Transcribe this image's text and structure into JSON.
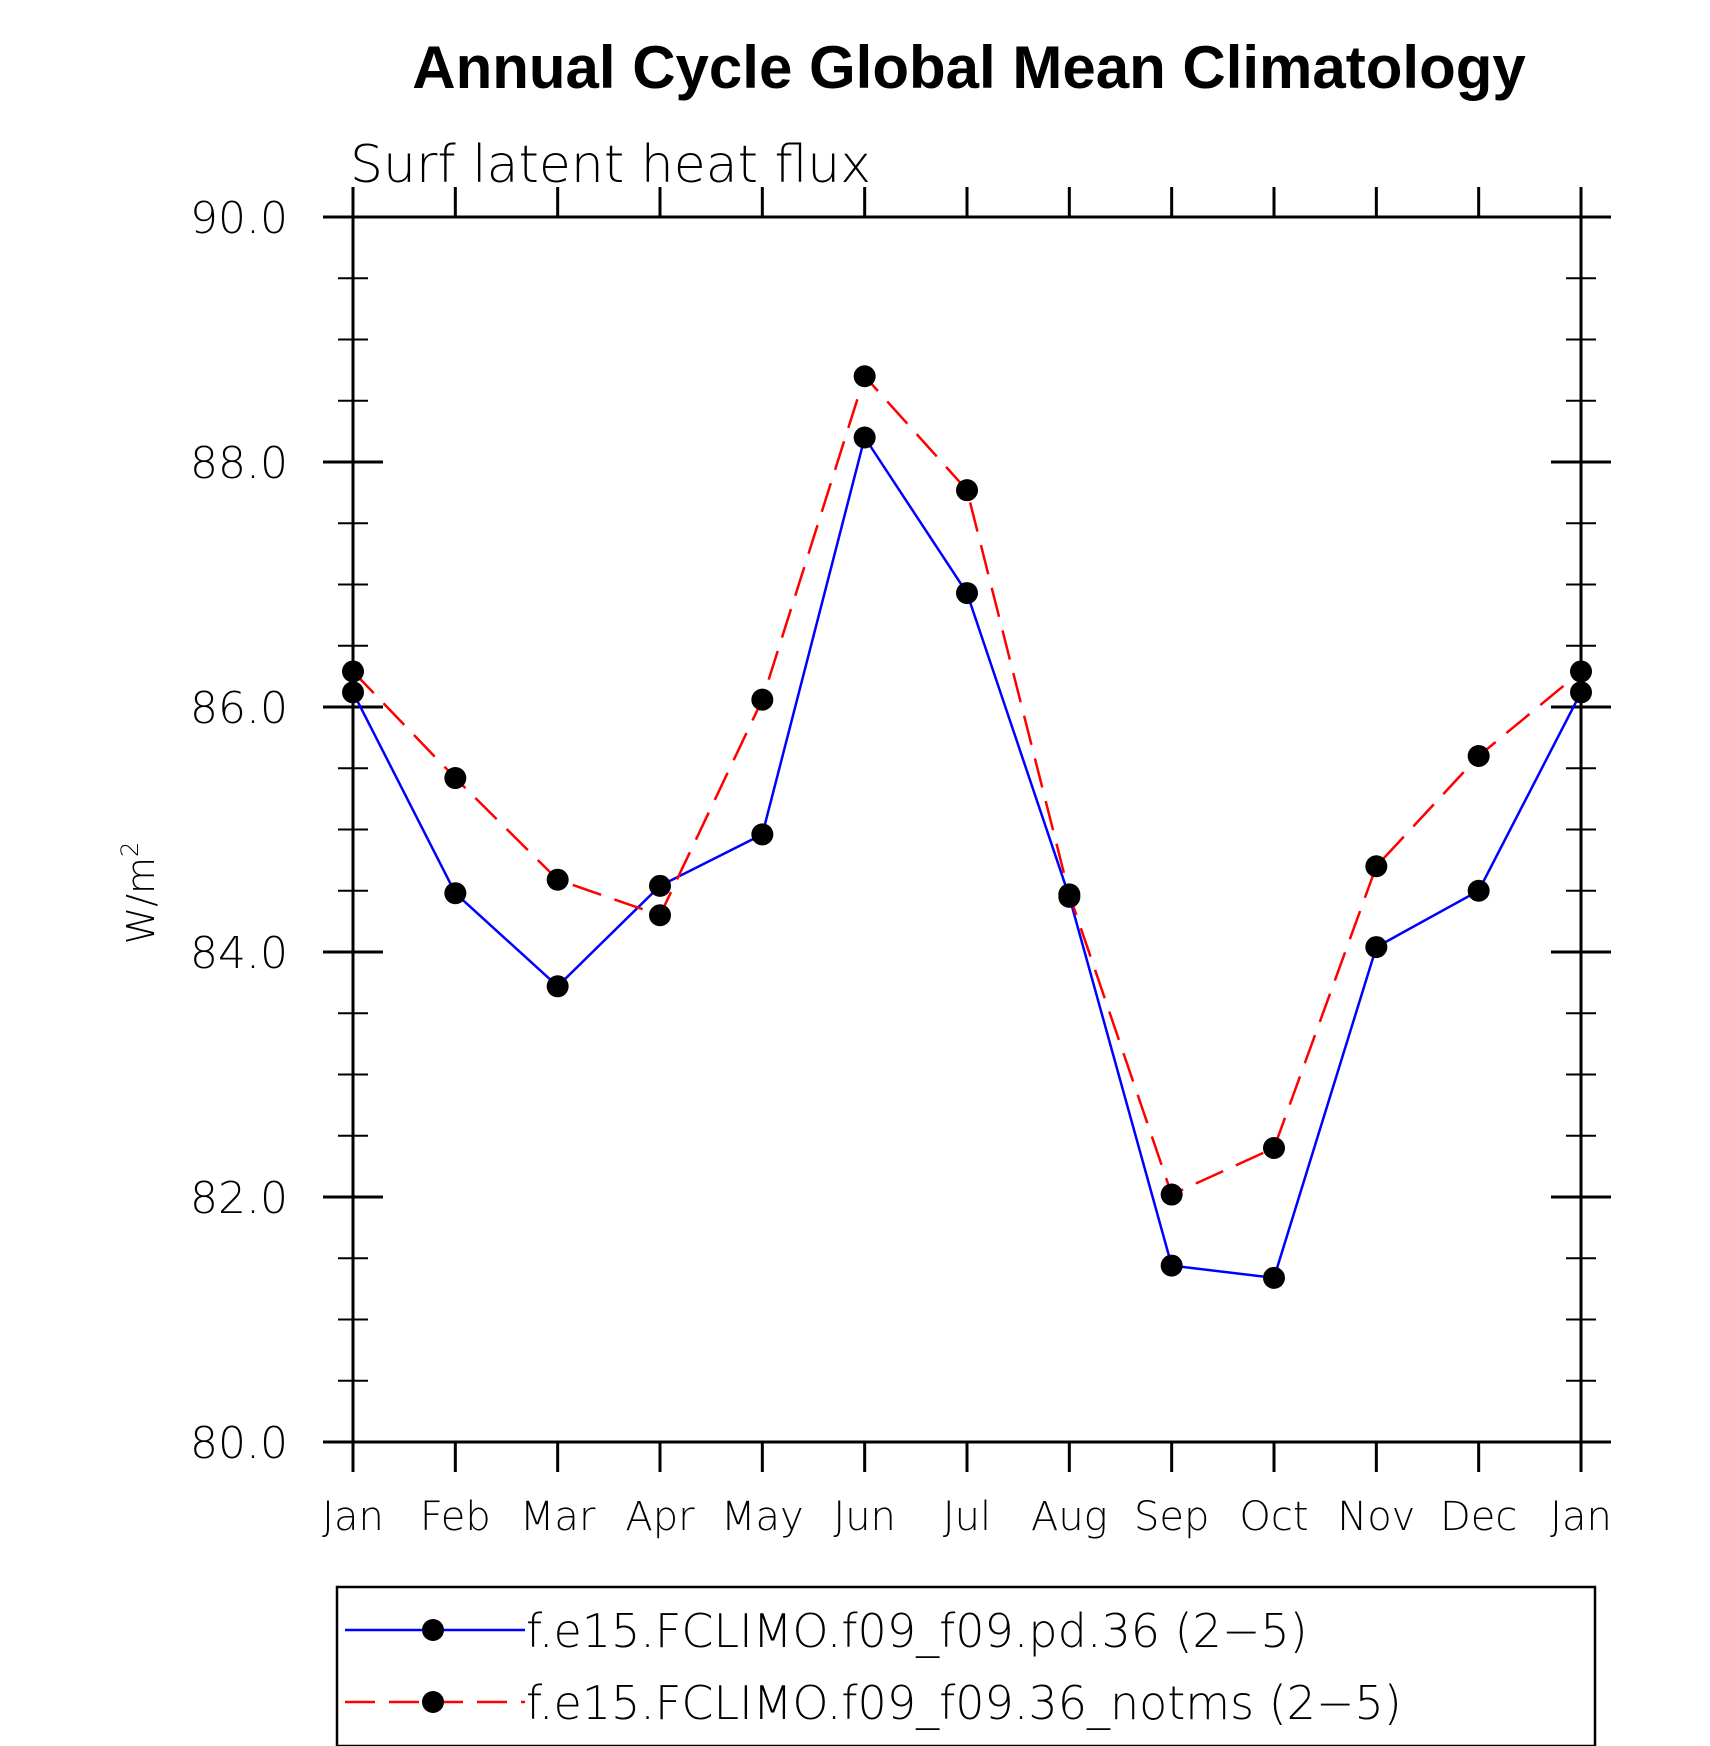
{
  "chart_data": {
    "type": "line",
    "title": "Annual Cycle Global Mean Climatology",
    "subtitle": "Surf latent heat flux",
    "ylabel_base": "W/m",
    "ylabel_sup": "2",
    "ylim": [
      80.0,
      90.0
    ],
    "yticks": [
      "80.0",
      "82.0",
      "84.0",
      "86.0",
      "88.0",
      "90.0"
    ],
    "categories": [
      "Jan",
      "Feb",
      "Mar",
      "Apr",
      "May",
      "Jun",
      "Jul",
      "Aug",
      "Sep",
      "Oct",
      "Nov",
      "Dec",
      "Jan"
    ],
    "series": [
      {
        "name": "f.e15.FCLIMO.f09_f09.pd.36 (2−5)",
        "color": "#0000ff",
        "dash": "solid",
        "values": [
          86.12,
          84.48,
          83.72,
          84.54,
          84.96,
          88.2,
          86.93,
          84.45,
          81.44,
          81.34,
          84.04,
          84.5,
          86.12
        ]
      },
      {
        "name": "f.e15.FCLIMO.f09_f09.36_notms (2−5)",
        "color": "#ff0000",
        "dash": "dashed",
        "values": [
          86.29,
          85.42,
          84.59,
          84.3,
          86.06,
          88.7,
          87.77,
          84.47,
          82.02,
          82.4,
          84.7,
          85.6,
          86.29
        ]
      }
    ],
    "legend_position": "bottom"
  }
}
